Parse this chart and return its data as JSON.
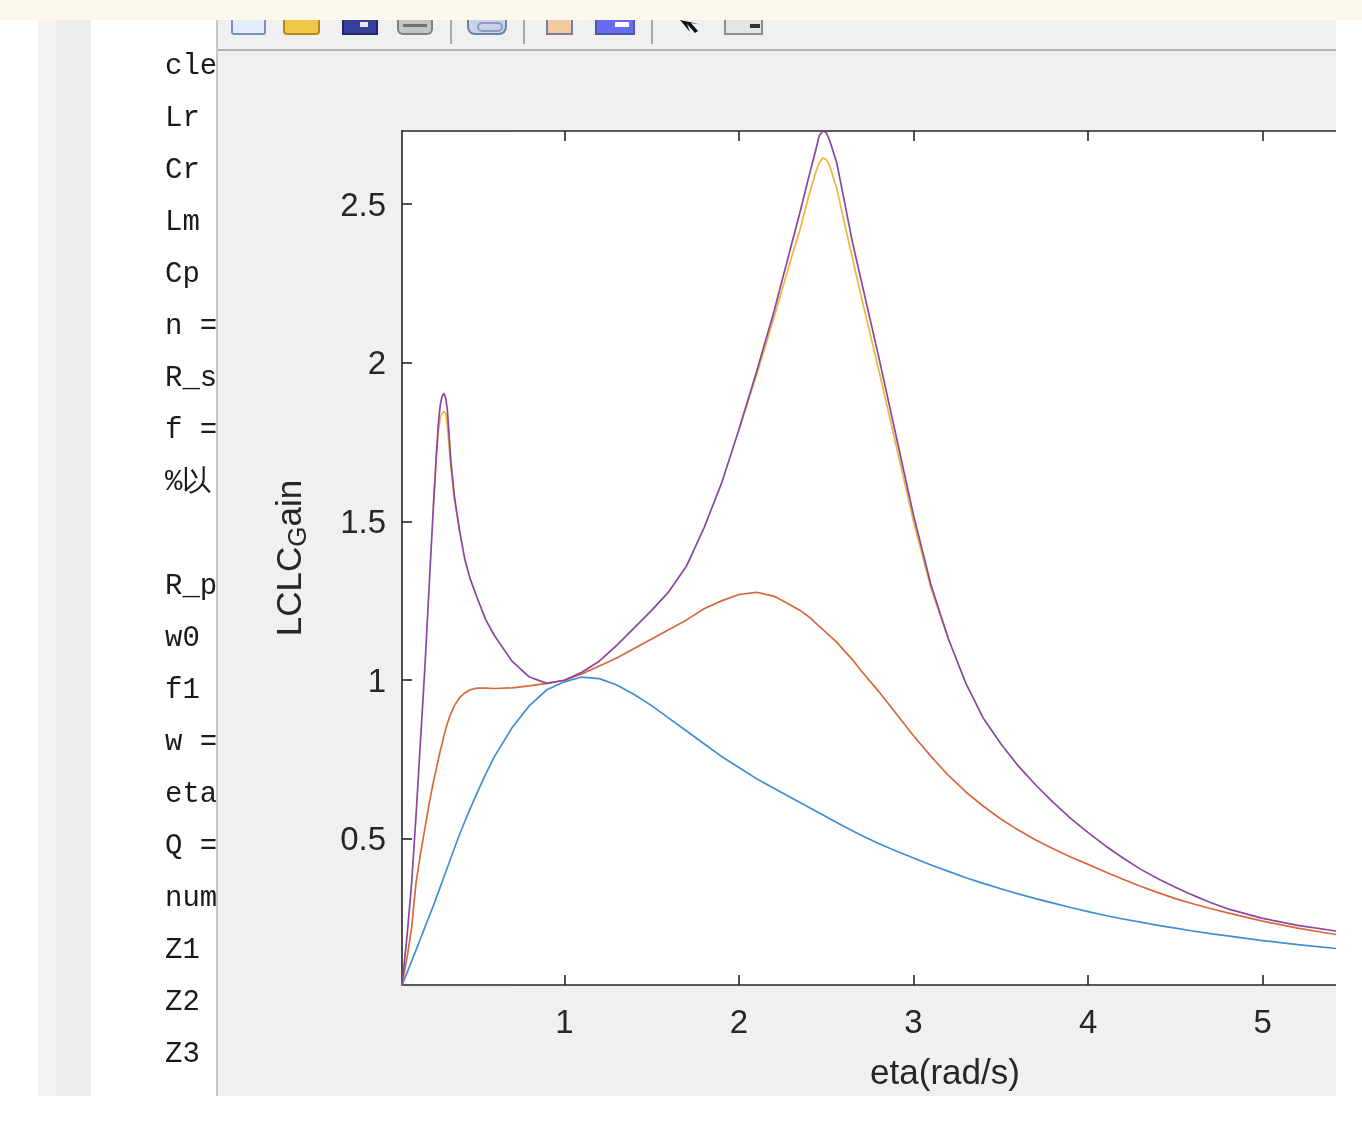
{
  "chart_data": {
    "type": "line",
    "xlabel": "eta(rad/s)",
    "ylabel": "LCLC$_{G}$ain",
    "annotations": [
      "cle\nLr\nCr\nLm\nCp\nn =\nR_s\nf =\n%以\n\nR_p\nw0\nf1\nw =\neta\nQ =\nnum\nZ1\nZ2\nZ3"
    ],
    "x": [
      0.07,
      0.1,
      0.125,
      0.15,
      0.175,
      0.2,
      0.225,
      0.25,
      0.27,
      0.28,
      0.29,
      0.3,
      0.31,
      0.32,
      0.33,
      0.35,
      0.37,
      0.4,
      0.43,
      0.46,
      0.5,
      0.55,
      0.6,
      0.7,
      0.8,
      0.9,
      1.0,
      1.1,
      1.2,
      1.3,
      1.4,
      1.5,
      1.6,
      1.7,
      1.8,
      1.9,
      2.0,
      2.1,
      2.2,
      2.3,
      2.35,
      2.4,
      2.44,
      2.46,
      2.48,
      2.5,
      2.52,
      2.56,
      2.6,
      2.65,
      2.7,
      2.8,
      2.9,
      3.0,
      3.1,
      3.2,
      3.3,
      3.4,
      3.5,
      3.6,
      3.7,
      3.8,
      3.9,
      4.0,
      4.1,
      4.2,
      4.3,
      4.4,
      4.5,
      4.6,
      4.7,
      4.8,
      5.0,
      5.2,
      5.42
    ],
    "series": [
      {
        "color": "#3f8fd7",
        "values": [
          0.04,
          0.08,
          0.115,
          0.15,
          0.185,
          0.22,
          0.255,
          0.29,
          0.32,
          0.335,
          0.35,
          0.365,
          0.38,
          0.395,
          0.41,
          0.44,
          0.47,
          0.515,
          0.555,
          0.595,
          0.645,
          0.705,
          0.76,
          0.85,
          0.92,
          0.97,
          0.995,
          1.01,
          1.005,
          0.985,
          0.955,
          0.92,
          0.88,
          0.84,
          0.8,
          0.76,
          0.725,
          0.69,
          0.66,
          0.63,
          0.615,
          0.6,
          0.588,
          0.582,
          0.576,
          0.57,
          0.564,
          0.552,
          0.54,
          0.526,
          0.512,
          0.486,
          0.462,
          0.44,
          0.418,
          0.398,
          0.378,
          0.36,
          0.343,
          0.327,
          0.312,
          0.298,
          0.284,
          0.271,
          0.259,
          0.248,
          0.238,
          0.228,
          0.219,
          0.21,
          0.202,
          0.195,
          0.18,
          0.167,
          0.155
        ]
      },
      {
        "color": "#d9693b",
        "values": [
          0.04,
          0.13,
          0.22,
          0.36,
          0.45,
          0.53,
          0.61,
          0.68,
          0.73,
          0.755,
          0.78,
          0.8,
          0.825,
          0.845,
          0.865,
          0.895,
          0.92,
          0.945,
          0.96,
          0.97,
          0.975,
          0.975,
          0.974,
          0.976,
          0.982,
          0.99,
          1.0,
          1.02,
          1.045,
          1.07,
          1.1,
          1.13,
          1.16,
          1.19,
          1.225,
          1.25,
          1.27,
          1.277,
          1.265,
          1.235,
          1.22,
          1.2,
          1.18,
          1.17,
          1.16,
          1.15,
          1.14,
          1.12,
          1.095,
          1.065,
          1.03,
          0.965,
          0.895,
          0.825,
          0.76,
          0.7,
          0.648,
          0.603,
          0.563,
          0.528,
          0.497,
          0.469,
          0.443,
          0.42,
          0.396,
          0.373,
          0.351,
          0.331,
          0.312,
          0.296,
          0.281,
          0.267,
          0.241,
          0.219,
          0.199
        ]
      },
      {
        "color": "#eeb53a",
        "values": [
          null,
          null,
          null,
          null,
          null,
          null,
          null,
          1.55,
          1.73,
          1.79,
          1.83,
          1.84,
          1.846,
          1.84,
          1.8,
          1.67,
          1.57,
          1.47,
          null,
          null,
          null,
          null,
          null,
          null,
          null,
          null,
          null,
          null,
          null,
          null,
          null,
          null,
          null,
          null,
          null,
          null,
          1.79,
          1.96,
          2.14,
          2.33,
          2.42,
          2.525,
          2.6,
          2.63,
          2.645,
          2.64,
          2.62,
          2.55,
          2.45,
          2.33,
          2.21,
          1.98,
          1.74,
          1.5,
          1.29,
          1.13,
          null,
          null,
          null,
          null,
          null,
          null,
          null,
          null,
          null,
          null,
          null,
          null,
          null,
          null,
          null,
          null,
          null,
          null,
          null
        ]
      },
      {
        "color": "#8a47a0",
        "values": [
          0.04,
          0.2,
          0.36,
          0.57,
          0.8,
          1.03,
          1.29,
          1.55,
          1.74,
          1.82,
          1.87,
          1.895,
          1.903,
          1.89,
          1.85,
          1.69,
          1.58,
          1.47,
          1.38,
          1.32,
          1.26,
          1.19,
          1.14,
          1.06,
          1.01,
          0.99,
          1.0,
          1.025,
          1.06,
          1.11,
          1.165,
          1.22,
          1.28,
          1.36,
          1.48,
          1.62,
          1.79,
          1.97,
          2.16,
          2.37,
          2.475,
          2.585,
          2.67,
          2.715,
          2.73,
          2.725,
          2.7,
          2.63,
          2.52,
          2.38,
          2.26,
          2.02,
          1.77,
          1.52,
          1.3,
          1.13,
          0.99,
          0.88,
          0.8,
          0.73,
          0.67,
          0.615,
          0.565,
          0.52,
          0.478,
          0.44,
          0.405,
          0.375,
          0.348,
          0.323,
          0.3,
          0.28,
          0.25,
          0.228,
          0.21
        ]
      }
    ],
    "xlim": [
      0.07,
      5.42
    ],
    "xticks": [
      1,
      2,
      3,
      4,
      5
    ],
    "ylim": [
      0.04,
      2.73
    ],
    "yticks": [
      0.5,
      1,
      1.5,
      2,
      2.5
    ]
  }
}
